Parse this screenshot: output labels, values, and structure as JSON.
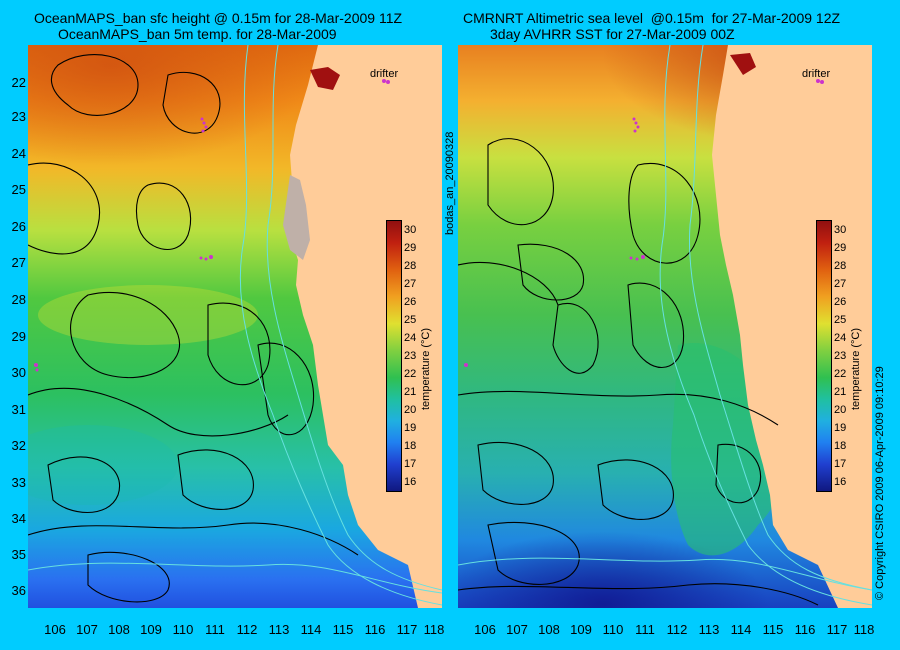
{
  "left": {
    "title_line1": "OceanMAPS_ban sfc height @ 0.15m for 28-Mar-2009 11Z",
    "title_line2": "OceanMAPS_ban 5m temp. for 28-Mar-2009",
    "drifter_label": "drifter",
    "colorbar_label": "temperature (°C)"
  },
  "right": {
    "title_line1": "CMRNRT Altimetric sea level  @0.15m  for 27-Mar-2009 12Z",
    "title_line2": "3day AVHRR SST for 27-Mar-2009 00Z",
    "drifter_label": "drifter",
    "colorbar_label": "temperature (°C)"
  },
  "side_label": "bodas_an_20090328",
  "copyright": "© Copyright CSIRO 2009    06-Apr-2009 09:10:29",
  "axes": {
    "latitudes": [
      "22",
      "23",
      "24",
      "25",
      "26",
      "27",
      "28",
      "29",
      "30",
      "31",
      "32",
      "33",
      "34",
      "35",
      "36"
    ],
    "longitudes": [
      "106",
      "107",
      "108",
      "109",
      "110",
      "111",
      "112",
      "113",
      "114",
      "115",
      "116",
      "117",
      "118"
    ]
  },
  "colorbar": {
    "ticks": [
      "30",
      "29",
      "28",
      "27",
      "26",
      "25",
      "24",
      "23",
      "22",
      "21",
      "20",
      "19",
      "18",
      "17",
      "16"
    ],
    "min": 15.5,
    "max": 30.5
  },
  "colors": {
    "background": "#00ccff",
    "land": "#ffcc99",
    "coastal_shelf": "#bfb0a8",
    "contour": "#000000",
    "isobath": "#66e0e0",
    "drifter": "#cc33cc"
  }
}
